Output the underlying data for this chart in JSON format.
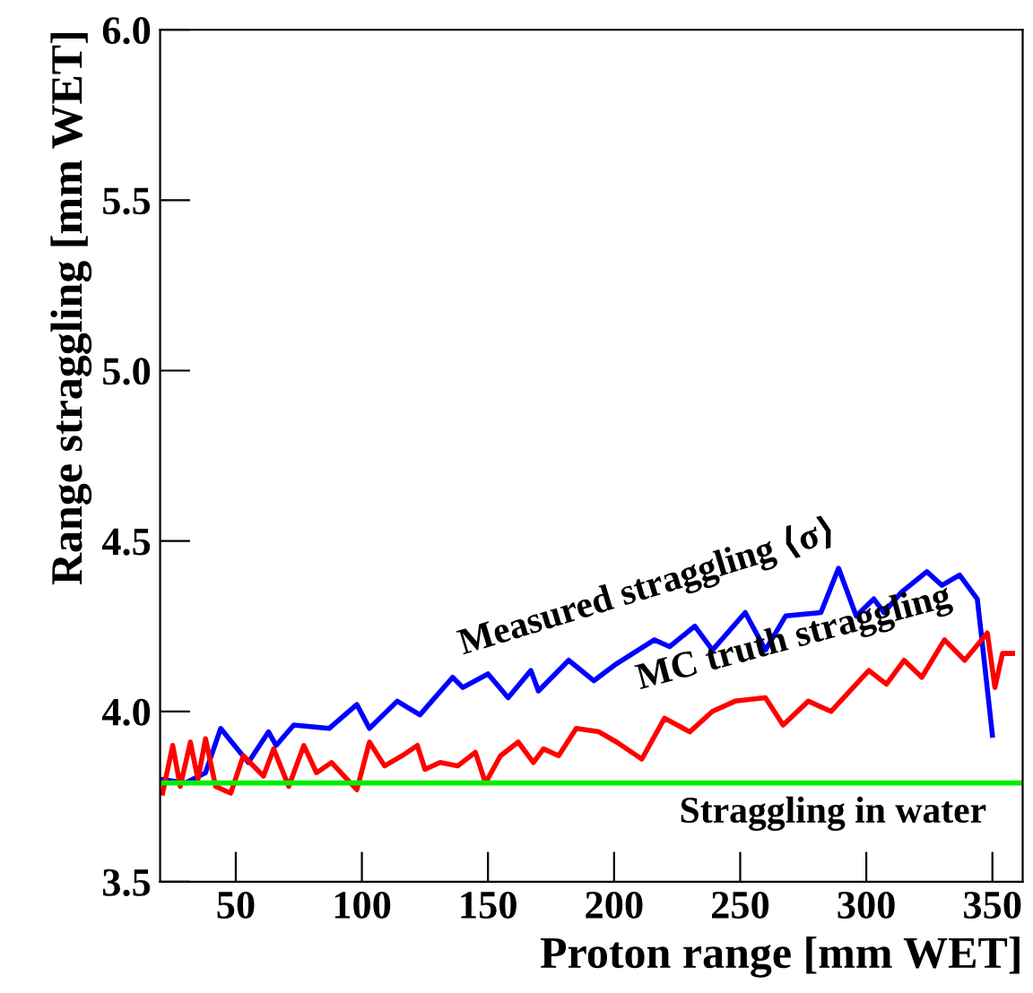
{
  "chart_data": {
    "type": "line",
    "xlabel": "Proton range [mm WET]",
    "ylabel": "Range straggling [mm WET]",
    "xlim": [
      20,
      362
    ],
    "ylim": [
      3.5,
      6.0
    ],
    "xticks": [
      50,
      100,
      150,
      200,
      250,
      300,
      350
    ],
    "yticks": [
      {
        "value": 3.5,
        "label": "3.5"
      },
      {
        "value": 4.0,
        "label": "4.0"
      },
      {
        "value": 4.5,
        "label": "4.5"
      },
      {
        "value": 5.0,
        "label": "5.0"
      },
      {
        "value": 5.5,
        "label": "5.5"
      },
      {
        "value": 6.0,
        "label": "6.0"
      }
    ],
    "grid": false,
    "marker": "none",
    "line_style": "solid",
    "series": [
      {
        "color": "#0000ff",
        "x": [
          21,
          30,
          38,
          44,
          55,
          63,
          66,
          73,
          87,
          98,
          103,
          114,
          123,
          136,
          140,
          150,
          158,
          167,
          170,
          182,
          192,
          201,
          216,
          222,
          232,
          239,
          252,
          260,
          268,
          282,
          289,
          296,
          303,
          307,
          314,
          324,
          330,
          337,
          344,
          346,
          350
        ],
        "values": [
          3.8,
          3.79,
          3.82,
          3.95,
          3.85,
          3.94,
          3.9,
          3.96,
          3.95,
          4.02,
          3.95,
          4.03,
          3.99,
          4.1,
          4.07,
          4.11,
          4.04,
          4.12,
          4.06,
          4.15,
          4.09,
          4.14,
          4.21,
          4.19,
          4.25,
          4.18,
          4.29,
          4.18,
          4.28,
          4.29,
          4.42,
          4.28,
          4.33,
          4.29,
          4.35,
          4.41,
          4.37,
          4.4,
          4.33,
          4.2,
          3.93
        ]
      },
      {
        "color": "#ff0000",
        "x": [
          21,
          25,
          28,
          32,
          35,
          38,
          42,
          48,
          53,
          61,
          65,
          71,
          77,
          82,
          88,
          93,
          98,
          103,
          109,
          116,
          122,
          125,
          131,
          138,
          145,
          149,
          155,
          162,
          168,
          172,
          178,
          185,
          194,
          201,
          211,
          220,
          230,
          239,
          248,
          260,
          267,
          277,
          286,
          296,
          301,
          308,
          315,
          322,
          331,
          339,
          348,
          351,
          354,
          358
        ],
        "values": [
          3.76,
          3.9,
          3.78,
          3.91,
          3.8,
          3.92,
          3.78,
          3.76,
          3.87,
          3.81,
          3.89,
          3.78,
          3.9,
          3.82,
          3.85,
          3.81,
          3.77,
          3.91,
          3.84,
          3.87,
          3.9,
          3.83,
          3.85,
          3.84,
          3.88,
          3.79,
          3.87,
          3.91,
          3.85,
          3.89,
          3.87,
          3.95,
          3.94,
          3.91,
          3.86,
          3.98,
          3.94,
          4.0,
          4.03,
          4.04,
          3.96,
          4.03,
          4.0,
          4.08,
          4.12,
          4.08,
          4.15,
          4.1,
          4.21,
          4.15,
          4.23,
          4.07,
          4.17,
          4.17
        ]
      }
    ],
    "ref_lines": [
      {
        "axis": "y",
        "value": 3.79,
        "color": "#00ee00",
        "line_style": "solid"
      }
    ],
    "annotations": [
      "Measured straggling ⟨σ⟩",
      "MC truth straggling",
      "Straggling in water"
    ]
  }
}
